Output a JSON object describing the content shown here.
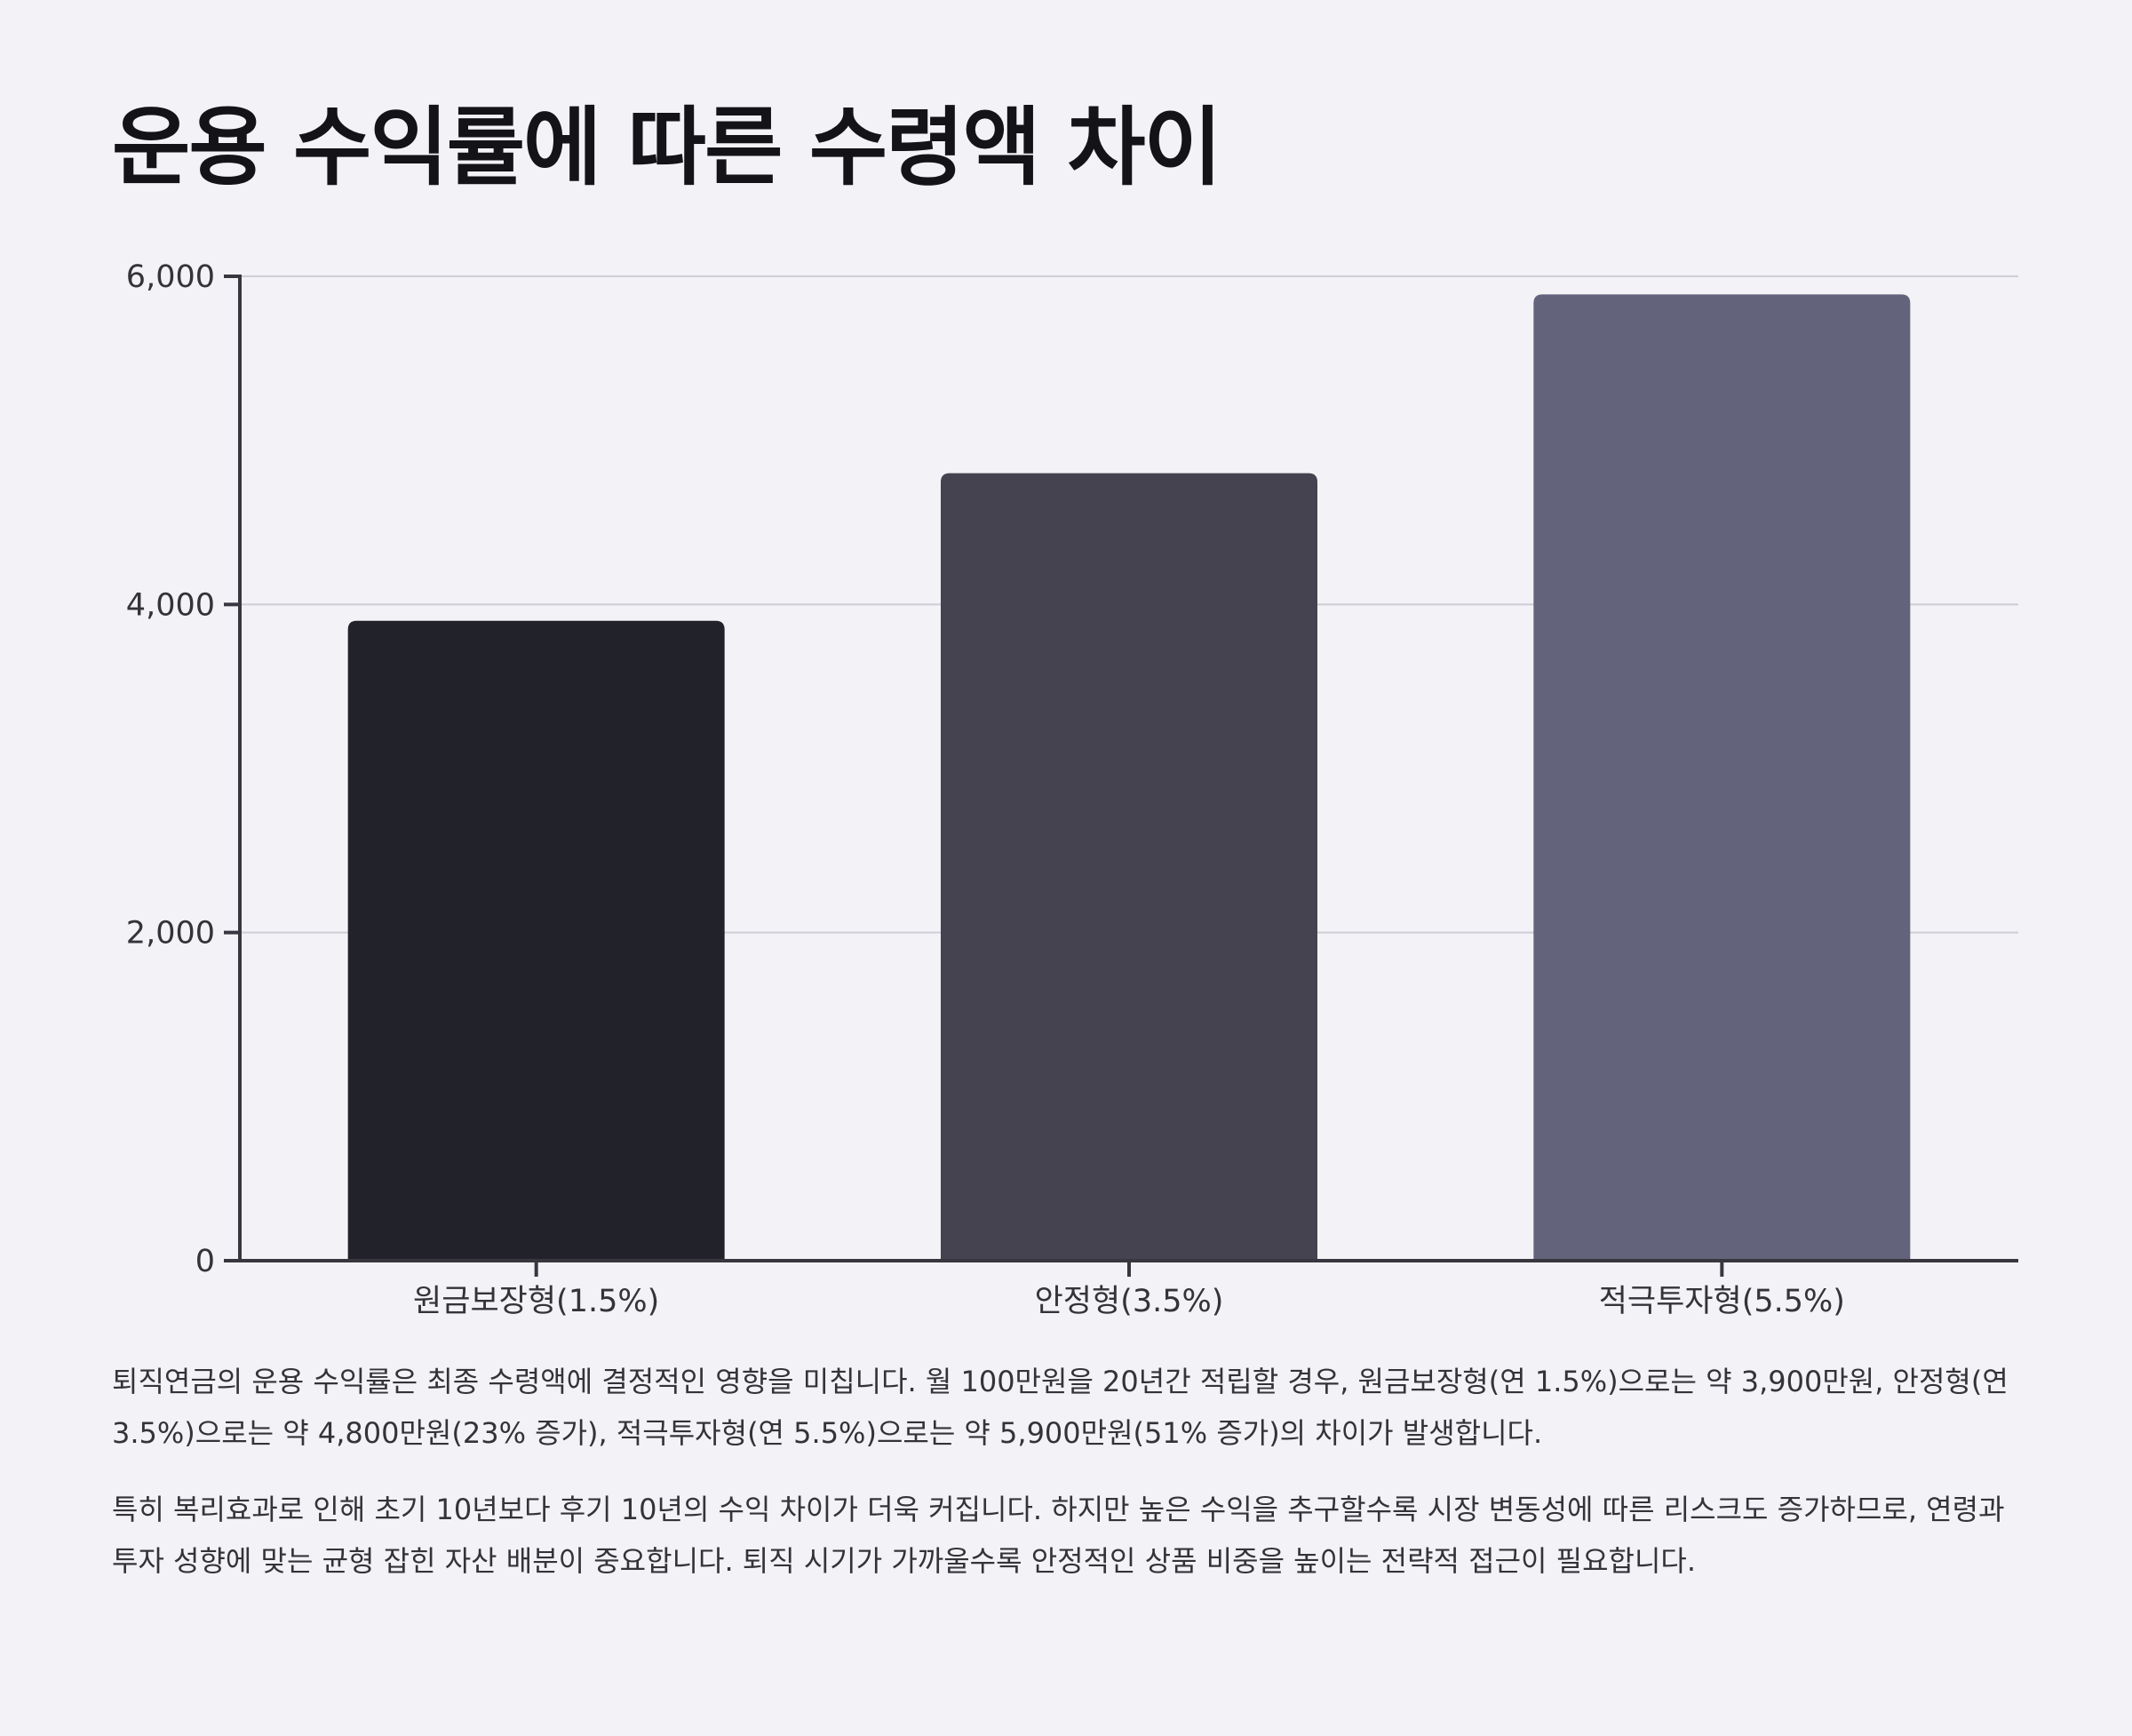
{
  "page": {
    "title": "운용 수익률에 따른 수령액 차이",
    "paragraphs": [
      "퇴직연금의 운용 수익률은 최종 수령액에 결정적인 영향을 미칩니다. 월 100만원을 20년간 적립할 경우, 원금보장형(연 1.5%)으로는 약 3,900만원, 안정형(연 3.5%)으로는 약 4,800만원(23% 증가), 적극투자형(연 5.5%)으로는 약 5,900만원(51% 증가)의 차이가 발생합니다.",
      "특히 복리효과로 인해 초기 10년보다 후기 10년의 수익 차이가 더욱 커집니다. 하지만 높은 수익을 추구할수록 시장 변동성에 따른 리스크도 증가하므로, 연령과 투자 성향에 맞는 균형 잡힌 자산 배분이 중요합니다. 퇴직 시기가 가까울수록 안정적인 상품 비중을 높이는 전략적 접근이 필요합니다."
    ]
  },
  "chart_data": {
    "type": "bar",
    "title": "운용 수익률에 따른 수령액 차이",
    "xlabel": "",
    "ylabel": "",
    "categories": [
      "원금보장형(1.5%)",
      "안정형(3.5%)",
      "적극투자형(5.5%)"
    ],
    "values": [
      3900,
      4800,
      5890
    ],
    "colors": [
      "#22222b",
      "#44434f",
      "#63637c"
    ],
    "ylim": [
      0,
      6000
    ],
    "yticks": [
      0,
      2000,
      4000,
      6000
    ],
    "ytick_labels": [
      "0",
      "2,000",
      "4,000",
      "6,000"
    ],
    "grid": true,
    "legend": "none"
  }
}
